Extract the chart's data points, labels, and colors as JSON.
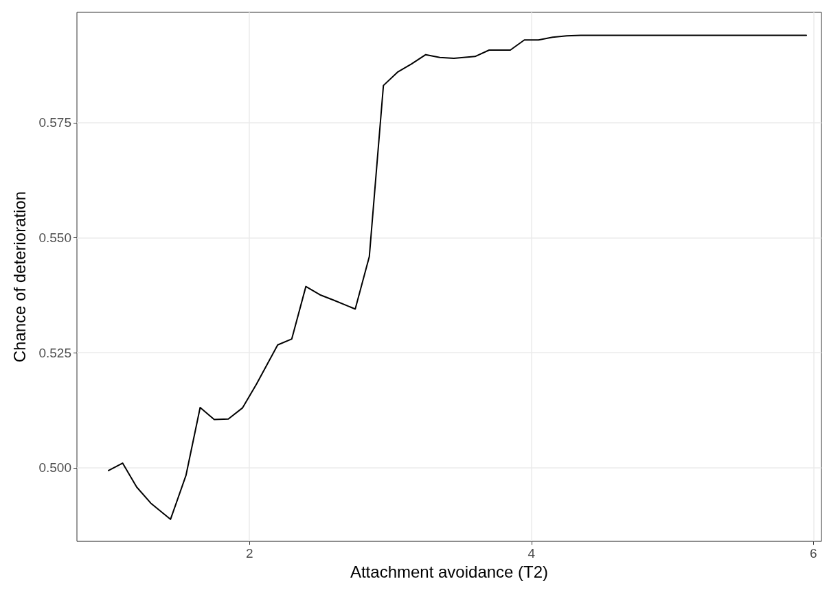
{
  "chart_data": {
    "type": "line",
    "xlabel": "Attachment avoidance (T2)",
    "ylabel": "Chance of deterioration",
    "x": [
      1.0,
      1.1,
      1.2,
      1.3,
      1.44,
      1.55,
      1.65,
      1.75,
      1.85,
      1.95,
      2.05,
      2.2,
      2.3,
      2.4,
      2.5,
      2.6,
      2.75,
      2.85,
      2.95,
      3.05,
      3.15,
      3.25,
      3.35,
      3.45,
      3.6,
      3.7,
      3.85,
      3.95,
      4.05,
      4.15,
      4.25,
      4.35,
      5.95
    ],
    "series": [
      {
        "color": "#000000",
        "values": [
          0.4994,
          0.501,
          0.4958,
          0.4923,
          0.4888,
          0.4984,
          0.5131,
          0.5105,
          0.5106,
          0.513,
          0.5182,
          0.5267,
          0.528,
          0.5394,
          0.5376,
          0.5364,
          0.5345,
          0.5459,
          0.5831,
          0.586,
          0.5878,
          0.5898,
          0.5892,
          0.589,
          0.5894,
          0.5908,
          0.5908,
          0.593,
          0.593,
          0.5936,
          0.5939,
          0.594,
          0.594
        ]
      }
    ],
    "xlim": [
      0.776,
      6.057
    ],
    "ylim": [
      0.484,
      0.599
    ],
    "xticks": [
      2,
      4,
      6
    ],
    "yticks": [
      {
        "value": 0.5,
        "label": "0.500"
      },
      {
        "value": 0.525,
        "label": "0.525"
      },
      {
        "value": 0.55,
        "label": "0.550"
      },
      {
        "value": 0.575,
        "label": "0.575"
      }
    ],
    "grid": true,
    "marker": "none",
    "line_style": "solid"
  }
}
